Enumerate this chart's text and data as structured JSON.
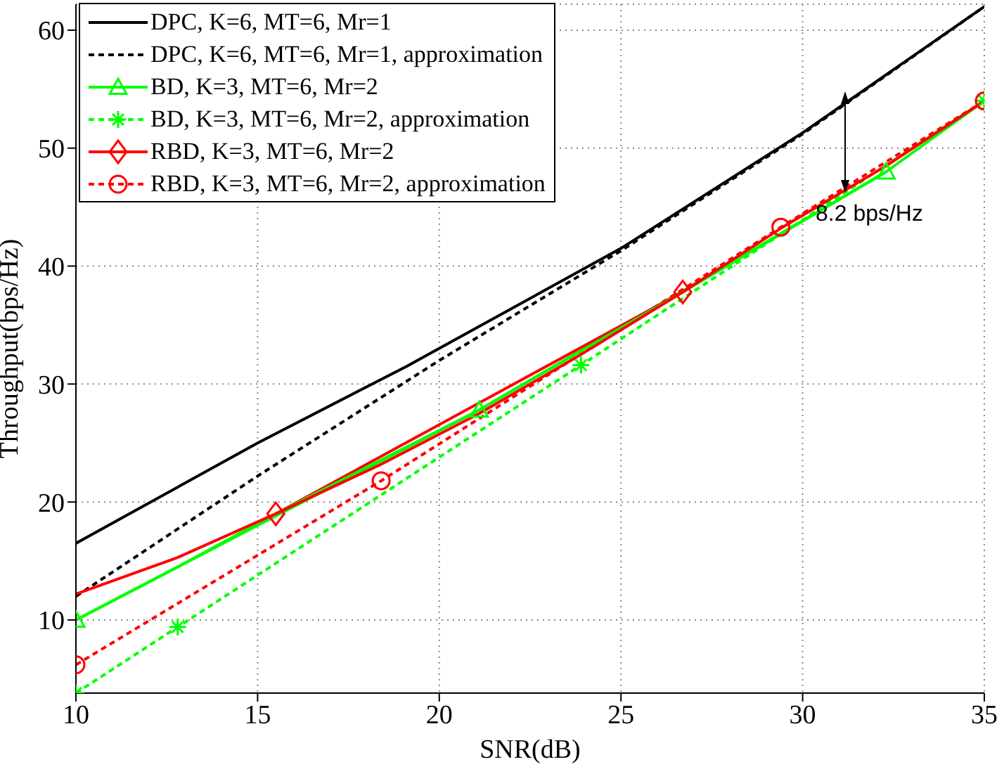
{
  "chart_data": {
    "type": "line",
    "xlabel": "SNR(dB)",
    "ylabel": "Throughput(bps/Hz)",
    "xlim": [
      10,
      35
    ],
    "ylim": [
      3.8,
      62.2
    ],
    "xticks": [
      10,
      15,
      20,
      25,
      30,
      35
    ],
    "yticks": [
      10,
      20,
      30,
      40,
      50,
      60
    ],
    "grid": true,
    "legend": "top left",
    "annotations": [
      "8.2 bps/Hz"
    ],
    "series": [
      {
        "name": "DPC, K=6, MT=6, Mr=1",
        "color": "#000000",
        "line_style": "solid",
        "marker": "none",
        "x": [
          10,
          15,
          19.1,
          25,
          30,
          35
        ],
        "values": [
          16.5,
          25,
          31.5,
          41.5,
          51.3,
          62
        ]
      },
      {
        "name": "DPC, K=6, MT=6, Mr=1, approximation",
        "color": "#000000",
        "line_style": "dashed",
        "marker": "none",
        "x": [
          10,
          15,
          20,
          25,
          30,
          35
        ],
        "values": [
          12,
          22.2,
          32,
          41.3,
          51.2,
          62
        ]
      },
      {
        "name": "BD, K=3, MT=6, Mr=2",
        "color": "#00ff00",
        "line_style": "solid",
        "marker": "triangle",
        "x": [
          10,
          21.1,
          32.3
        ],
        "values": [
          10,
          27.8,
          48
        ]
      },
      {
        "name": "BD, K=3, MT=6, Mr=2, approximation",
        "color": "#00ff00",
        "line_style": "dashed",
        "marker": "cross",
        "x": [
          10,
          12.8,
          23.9,
          35
        ],
        "values": [
          3.8,
          9.4,
          31.6,
          54
        ]
      },
      {
        "name": "RBD, K=3, MT=6, Mr=2",
        "color": "#ff0000",
        "line_style": "solid",
        "marker": "diamond",
        "x": [
          15.5,
          26.7
        ],
        "values": [
          19,
          37.8
        ]
      },
      {
        "name": "RBD, K=3, MT=6, Mr=2, approximation",
        "color": "#ff0000",
        "line_style": "dashed",
        "marker": "circle",
        "x": [
          10,
          18.4,
          29.4,
          35
        ],
        "values": [
          6.2,
          21.8,
          43.3,
          54
        ]
      },
      {
        "color": "#00ff00",
        "line_style": "solid",
        "marker": "none",
        "x": [
          10,
          12.8,
          15.5,
          21.1,
          26.7,
          32.3,
          35
        ],
        "values": [
          10,
          14.5,
          19,
          27.8,
          37.8,
          48,
          54
        ]
      },
      {
        "color": "#ff0000",
        "line_style": "solid",
        "marker": "none",
        "x": [
          10,
          12.8,
          15.5,
          18.4,
          21.1,
          23.9,
          26.7,
          29.4,
          32.3,
          35
        ],
        "values": [
          12.2,
          15.3,
          19,
          23.2,
          27.5,
          32.5,
          37.8,
          43.2,
          48.5,
          54
        ]
      }
    ]
  }
}
